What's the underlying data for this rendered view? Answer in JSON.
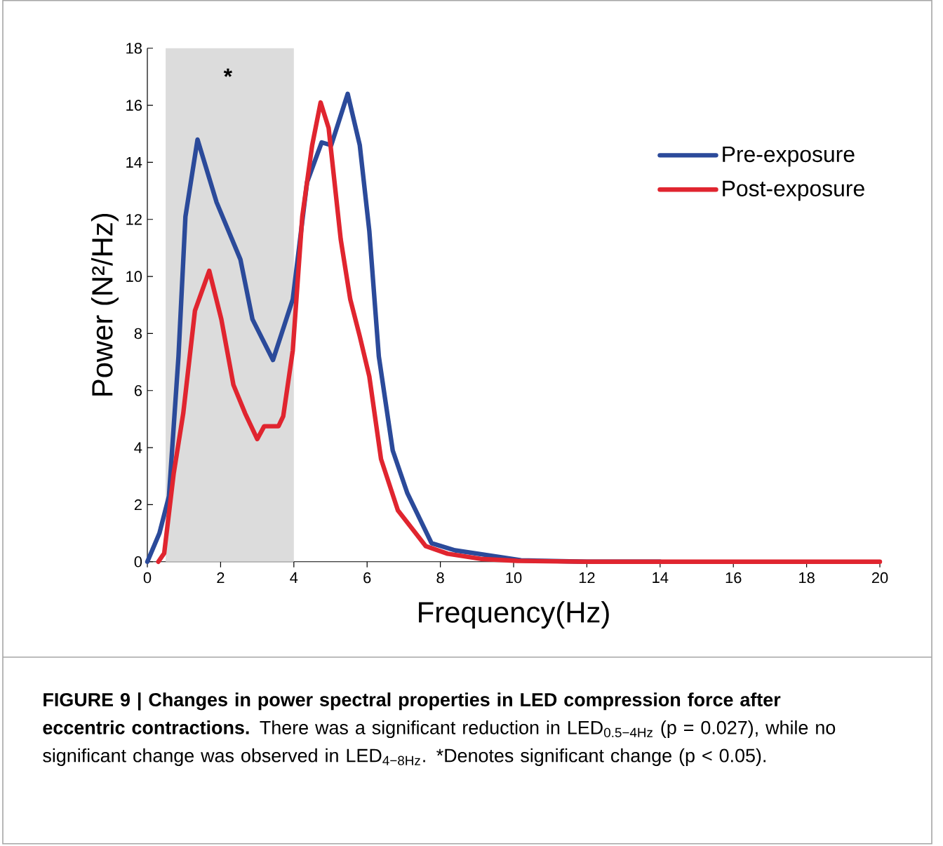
{
  "chart_data": {
    "type": "line",
    "title": "FIGURE 9 | Changes in power spectral properties in LED compression force after eccentric contractions.",
    "xlabel": "Frequency(Hz)",
    "ylabel": "Power (N²/Hz)",
    "xlim": [
      0,
      20
    ],
    "ylim": [
      0,
      18
    ],
    "xticks": [
      0,
      2,
      4,
      6,
      8,
      10,
      12,
      14,
      16,
      18,
      20
    ],
    "yticks": [
      0,
      2,
      4,
      6,
      8,
      10,
      12,
      14,
      16,
      18
    ],
    "grid": false,
    "legend": "top right",
    "line_style": "solid",
    "marker": "none",
    "bands": [
      {
        "axis": "x",
        "from": 0.5,
        "to": 4,
        "color": "#dcdcdc"
      }
    ],
    "annotations": [
      "*",
      "There was a significant reduction in LED$_{0.5−4Hz}$ (p = 0.027), while no significant change was observed in LED$_{4−8Hz}$. *Denotes significant change (p < 0.05)."
    ],
    "series": [
      {
        "name": "Pre-exposure",
        "color": "#2b4a9a",
        "x": [
          0,
          0.33,
          0.59,
          0.85,
          1.04,
          1.37,
          1.89,
          2.54,
          2.87,
          3.43,
          3.97,
          4.36,
          4.76,
          5.02,
          5.47,
          5.8,
          6.06,
          6.32,
          6.7,
          7.1,
          7.76,
          8.4,
          9.7,
          10.2,
          12,
          14
        ],
        "values": [
          0,
          1.0,
          2.3,
          7.2,
          12.1,
          14.8,
          12.6,
          10.6,
          8.5,
          7.07,
          9.2,
          13.3,
          14.7,
          14.6,
          16.4,
          14.6,
          11.6,
          7.2,
          3.9,
          2.4,
          0.65,
          0.4,
          0.15,
          0.05,
          0,
          0
        ]
      },
      {
        "name": "Post-exposure",
        "color": "#e0252f",
        "x": [
          0.3,
          0.46,
          0.72,
          0.98,
          1.3,
          1.69,
          2.02,
          2.35,
          2.67,
          3.0,
          3.19,
          3.58,
          3.71,
          3.97,
          4.23,
          4.5,
          4.73,
          4.95,
          5.28,
          5.54,
          5.8,
          6.06,
          6.38,
          6.84,
          7.6,
          8.2,
          9.1,
          10.1,
          12,
          14,
          16,
          18,
          20
        ],
        "values": [
          0,
          0.3,
          3.1,
          5.2,
          8.8,
          10.2,
          8.5,
          6.2,
          5.2,
          4.3,
          4.75,
          4.75,
          5.1,
          7.4,
          12.1,
          14.6,
          16.1,
          15.2,
          11.3,
          9.2,
          7.9,
          6.5,
          3.6,
          1.8,
          0.55,
          0.28,
          0.1,
          0.03,
          0,
          0,
          0,
          0,
          0
        ]
      }
    ]
  }
}
